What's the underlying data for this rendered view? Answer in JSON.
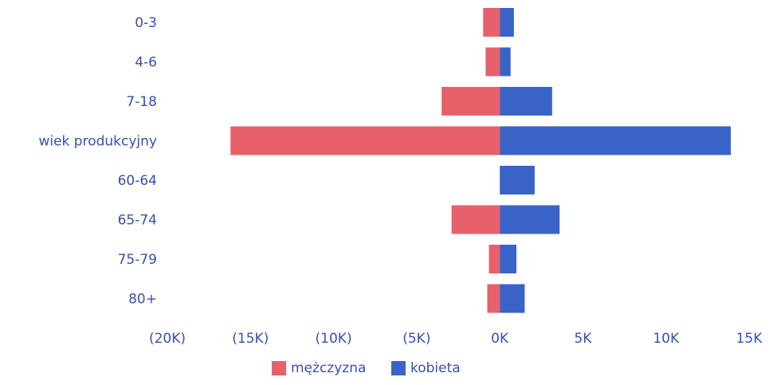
{
  "chart_data": {
    "type": "bar",
    "orientation": "horizontal",
    "layout": "population-pyramid",
    "categories": [
      "0-3",
      "4-6",
      "7-18",
      "wiek produkcyjny",
      "60-64",
      "65-74",
      "75-79",
      "80+"
    ],
    "series": [
      {
        "name": "mężczyzna",
        "color": "#e8606a",
        "values": [
          -1000,
          -850,
          -3500,
          -16200,
          0,
          -2900,
          -650,
          -750
        ]
      },
      {
        "name": "kobieta",
        "color": "#3a63c8",
        "values": [
          850,
          650,
          3150,
          13900,
          2100,
          3600,
          1000,
          1500
        ]
      }
    ],
    "xlim": [
      -20000,
      15000
    ],
    "xticks": [
      -20000,
      -15000,
      -10000,
      -5000,
      0,
      5000,
      10000,
      15000
    ],
    "xtick_labels": [
      "(20K)",
      "(15K)",
      "(10K)",
      "(5K)",
      "0K",
      "5K",
      "10K",
      "15K"
    ],
    "title": "",
    "xlabel": "",
    "ylabel": "",
    "grid": false,
    "legend_position": "bottom-center"
  }
}
